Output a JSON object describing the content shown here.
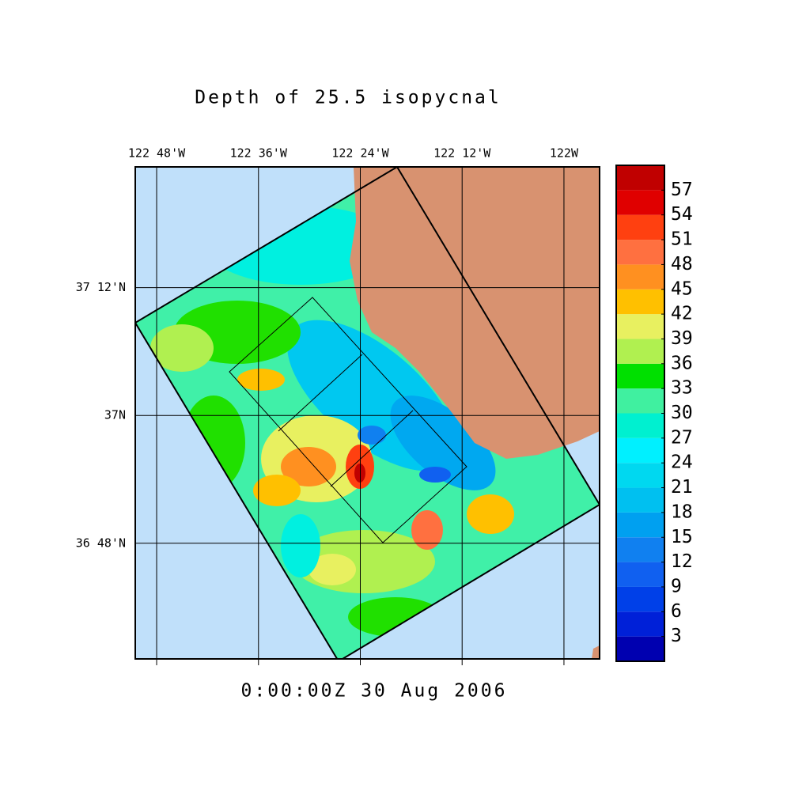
{
  "chart_data": {
    "type": "contour",
    "title": "Depth of 25.5 isopycnal",
    "subtitle": "0:00:00Z  30 Aug 2006",
    "xlim": [
      -122.842,
      -121.93
    ],
    "ylim": [
      36.619,
      37.389
    ],
    "xticks": [
      {
        "value": -122.8,
        "label": "122 48'W"
      },
      {
        "value": -122.6,
        "label": "122 36'W"
      },
      {
        "value": -122.4,
        "label": "122 24'W"
      },
      {
        "value": -122.2,
        "label": "122 12'W"
      },
      {
        "value": -122.0,
        "label": "122W"
      }
    ],
    "yticks": [
      {
        "value": 37.2,
        "label": "37 12'N"
      },
      {
        "value": 37.0,
        "label": "37N"
      },
      {
        "value": 36.8,
        "label": "36 48'N"
      }
    ],
    "grid": true,
    "colorbar": {
      "lim": [
        0,
        60
      ],
      "ticks": [
        3,
        6,
        9,
        12,
        15,
        18,
        21,
        24,
        27,
        30,
        33,
        36,
        39,
        42,
        45,
        48,
        51,
        54,
        57
      ],
      "colors": [
        "#0000b0",
        "#0020d8",
        "#0040e8",
        "#1060f0",
        "#1080f0",
        "#00a0f0",
        "#00c0f0",
        "#00d8f0",
        "#00f0ff",
        "#00f0d0",
        "#40f0a0",
        "#00e000",
        "#b0f050",
        "#e8f060",
        "#ffc000",
        "#ff9020",
        "#ff7040",
        "#ff4010",
        "#e00000",
        "#c00000"
      ]
    }
  }
}
